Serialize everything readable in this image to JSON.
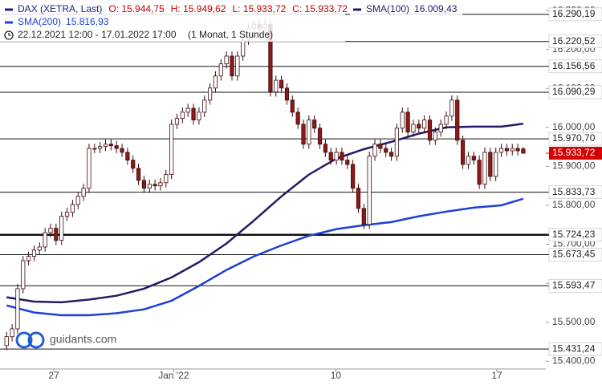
{
  "chart_data": {
    "type": "candlestick",
    "instrument": "DAX (XETRA, Last)",
    "ohlc_labels": [
      "O: 15.944,75",
      "H: 15.949,62",
      "L: 15.933,72",
      "C: 15.933,72"
    ],
    "date_range": "22.12.2021 12:00 - 17.01.2022 17:00",
    "interval": "(1 Monat, 1 Stunde)",
    "watermark": "guidants.com",
    "up_color": "#ffffff",
    "down_color": "#8b1a1a",
    "open": [
      15440,
      15463,
      15483,
      15586,
      15658,
      15669,
      15685,
      15693,
      15730,
      15741,
      15710,
      15772,
      15782,
      15802,
      15823,
      15844,
      15946,
      15946,
      15951,
      15957,
      15953,
      15946,
      15936,
      15916,
      15895,
      15864,
      15844,
      15854,
      15850,
      15858,
      15879,
      16008,
      16023,
      16039,
      16049,
      16019,
      16039,
      16070,
      16101,
      16132,
      16163,
      16183,
      16132,
      16183,
      16224,
      16255,
      16265,
      16255,
      16265,
      16091,
      16121,
      16101,
      16070,
      16039,
      16008,
      15957,
      16019,
      15998,
      15957,
      15936,
      15916,
      15936,
      15916,
      15905,
      15844,
      15792,
      15751,
      15926,
      15957,
      15946,
      15936,
      15926,
      15998,
      16039,
      15988,
      16008,
      15998,
      16019,
      15967,
      15988,
      16008,
      16029,
      16070,
      15967,
      15905,
      15926,
      15916,
      15854,
      15936,
      15874,
      15936,
      15946,
      15940,
      15946,
      15944.75
    ],
    "high": [
      15475,
      15495,
      15598,
      15670,
      15681,
      15697,
      15705,
      15742,
      15753,
      15753,
      15784,
      15794,
      15814,
      15835,
      15856,
      15958,
      15958,
      15963,
      15969,
      15969,
      15965,
      15958,
      15948,
      15928,
      15907,
      15876,
      15866,
      15866,
      15870,
      15891,
      16020,
      16035,
      16051,
      16061,
      16061,
      16051,
      16082,
      16113,
      16144,
      16175,
      16195,
      16195,
      16195,
      16236,
      16267,
      16277,
      16277,
      16277,
      16277,
      16133,
      16133,
      16113,
      16082,
      16051,
      16020,
      16031,
      16031,
      16010,
      15969,
      15948,
      15948,
      15948,
      15928,
      15917,
      15856,
      15804,
      15938,
      15969,
      15969,
      15958,
      15948,
      16010,
      16051,
      16051,
      16020,
      16020,
      16031,
      16031,
      16000,
      16020,
      16041,
      16082,
      16082,
      15979,
      15938,
      15938,
      15928,
      15948,
      15948,
      15948,
      15958,
      15958,
      15958,
      15958,
      15949.62
    ],
    "low": [
      15428,
      15451,
      15471,
      15574,
      15646,
      15657,
      15673,
      15681,
      15718,
      15698,
      15698,
      15760,
      15770,
      15790,
      15811,
      15832,
      15934,
      15934,
      15939,
      15941,
      15934,
      15924,
      15904,
      15883,
      15852,
      15832,
      15832,
      15838,
      15838,
      15846,
      15867,
      15996,
      16011,
      16027,
      16007,
      16007,
      16027,
      16058,
      16089,
      16120,
      16151,
      16120,
      16120,
      16171,
      16212,
      16243,
      16243,
      16243,
      16079,
      16079,
      16089,
      16058,
      16027,
      15996,
      15945,
      15945,
      15986,
      15945,
      15924,
      15904,
      15904,
      15904,
      15893,
      15832,
      15780,
      15739,
      15739,
      15914,
      15934,
      15924,
      15914,
      15914,
      15986,
      15976,
      15976,
      15986,
      15986,
      15955,
      15955,
      15976,
      15996,
      16017,
      15955,
      15893,
      15893,
      15904,
      15842,
      15842,
      15862,
      15862,
      15924,
      15928,
      15928,
      15928,
      15933.72
    ],
    "close": [
      15463,
      15483,
      15586,
      15658,
      15669,
      15685,
      15693,
      15730,
      15741,
      15710,
      15772,
      15782,
      15802,
      15823,
      15844,
      15946,
      15946,
      15951,
      15957,
      15953,
      15946,
      15936,
      15916,
      15895,
      15864,
      15844,
      15854,
      15850,
      15858,
      15879,
      16008,
      16023,
      16039,
      16049,
      16019,
      16039,
      16070,
      16101,
      16132,
      16163,
      16183,
      16132,
      16183,
      16224,
      16255,
      16265,
      16255,
      16265,
      16091,
      16121,
      16101,
      16070,
      16039,
      16008,
      15957,
      16019,
      15998,
      15957,
      15936,
      15916,
      15936,
      15916,
      15905,
      15844,
      15792,
      15751,
      15926,
      15957,
      15946,
      15936,
      15926,
      15998,
      16039,
      15988,
      16008,
      15998,
      16019,
      15967,
      15988,
      16008,
      16029,
      16070,
      15967,
      15905,
      15926,
      15916,
      15854,
      15936,
      15874,
      15936,
      15946,
      15940,
      15946,
      15940,
      15933.72
    ],
    "series": [
      {
        "name": "SMA(100)",
        "value_label": "16.009,43",
        "color": "#2a1866",
        "x": [
          0,
          5,
          10,
          15,
          20,
          25,
          30,
          35,
          40,
          45,
          50,
          55,
          60,
          65,
          70,
          75,
          80,
          85,
          90,
          94
        ],
        "values": [
          15564,
          15553,
          15551,
          15558,
          15568,
          15586,
          15615,
          15654,
          15702,
          15761,
          15823,
          15879,
          15920,
          15944,
          15963,
          15984,
          16000,
          16002,
          16002,
          16009.43
        ]
      },
      {
        "name": "SMA(200)",
        "value_label": "15.816,93",
        "color": "#1d3fd6",
        "x": [
          0,
          5,
          10,
          15,
          20,
          25,
          30,
          35,
          40,
          45,
          50,
          55,
          60,
          65,
          70,
          75,
          80,
          85,
          90,
          94
        ],
        "values": [
          15543,
          15525,
          15518,
          15518,
          15523,
          15533,
          15555,
          15593,
          15634,
          15669,
          15697,
          15722,
          15739,
          15749,
          15757,
          15772,
          15784,
          15794,
          15800,
          15816.93
        ]
      }
    ],
    "levels": [
      {
        "value": 16290.19,
        "label": "16.290,19"
      },
      {
        "value": 16220.52,
        "label": "16.220,52"
      },
      {
        "value": 16156.56,
        "label": "16.156,56"
      },
      {
        "value": 16090.29,
        "label": "16.090,29"
      },
      {
        "value": 15970.7,
        "label": "15.970,70"
      },
      {
        "value": 15833.73,
        "label": "15.833,73"
      },
      {
        "value": 15724.23,
        "label": "15.724,23"
      },
      {
        "value": 15673.45,
        "label": "15.673,45"
      },
      {
        "value": 15593.47,
        "label": "15.593,47"
      },
      {
        "value": 15431.24,
        "label": "15.431,24"
      }
    ],
    "last_price": {
      "value": 15933.72,
      "label": "15.933,72"
    },
    "last_price_color": "#d40000",
    "xlim": [
      -1.2,
      98.1
    ],
    "ylim": [
      15380,
      16327
    ],
    "xticks": [
      {
        "value": 8.6,
        "label": "27"
      },
      {
        "value": 30.4,
        "label": "Jan '22"
      },
      {
        "value": 59.9,
        "label": "10"
      },
      {
        "value": 89.2,
        "label": "17"
      }
    ],
    "yticks": [
      {
        "value": 15400,
        "label": "15.400,00"
      },
      {
        "value": 15500,
        "label": "15.500,00"
      },
      {
        "value": 15600,
        "label": "15.600,00"
      },
      {
        "value": 15700,
        "label": "15.700,00"
      },
      {
        "value": 15800,
        "label": "15.800,00"
      },
      {
        "value": 15900,
        "label": "15.900,00"
      },
      {
        "value": 16000,
        "label": "16.000,00"
      },
      {
        "value": 16100,
        "label": "16.100,00"
      },
      {
        "value": 16200,
        "label": "16.200,00"
      },
      {
        "value": 16300,
        "label": "16.300,00"
      }
    ]
  }
}
